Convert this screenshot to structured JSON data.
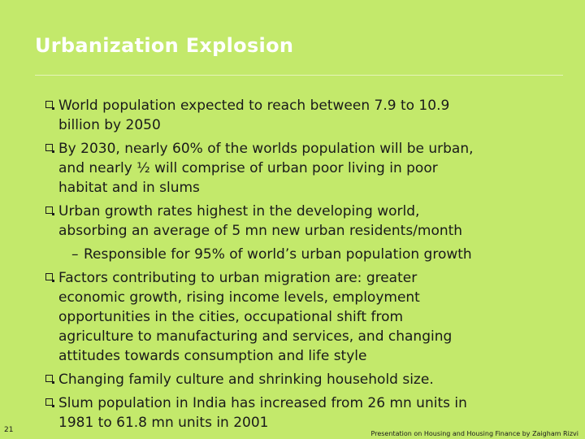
{
  "header": {
    "title": "Urbanization Explosion"
  },
  "bullets": [
    {
      "lines": [
        "World population expected to reach between 7.9 to 10.9",
        "billion by 2050"
      ]
    },
    {
      "lines": [
        "By 2030, nearly 60% of the worlds population will be urban,",
        "and nearly ½ will comprise of urban poor living in poor",
        "habitat and in slums"
      ]
    },
    {
      "lines": [
        "Urban growth rates highest in the developing world,",
        "absorbing an average of 5 mn new urban residents/month"
      ],
      "sub_bullets": [
        {
          "lines": [
            "Responsible for 95% of world’s urban population growth"
          ]
        }
      ]
    },
    {
      "lines": [
        "Factors contributing to urban migration are: greater",
        "economic growth, rising income levels, employment",
        "opportunities in the cities, occupational shift from",
        "agriculture to manufacturing and services, and changing",
        "attitudes towards consumption and life style"
      ]
    },
    {
      "lines": [
        "Changing family culture and shrinking household size."
      ]
    },
    {
      "lines": [
        "Slum population in India has increased from 26 mn units in",
        "1981 to 61.8 mn units in 2001"
      ]
    }
  ],
  "footer": {
    "page_number": "21",
    "credit": "Presentation on Housing and Housing Finance by Zaigham Rizvi"
  }
}
